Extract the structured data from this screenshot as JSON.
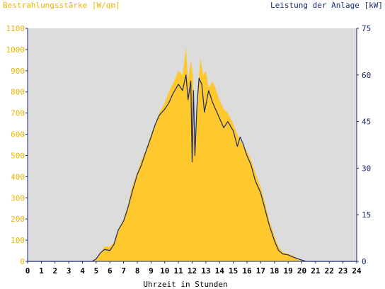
{
  "chart_data": {
    "type": "area",
    "left_axis_title": "Bestrahlungsstärke [W/qm]",
    "right_axis_title": "Leistung der Anlage [kW]",
    "xlabel": "Uhrzeit in Stunden",
    "xlim": [
      0,
      24
    ],
    "ylim_left": [
      0,
      1100
    ],
    "ylim_right": [
      0,
      75
    ],
    "x_ticks": [
      "0",
      "1",
      "2",
      "3",
      "4",
      "5",
      "6",
      "7",
      "8",
      "9",
      "10",
      "11",
      "12",
      "13",
      "14",
      "15",
      "16",
      "17",
      "18",
      "19",
      "20",
      "21",
      "22",
      "23",
      "24"
    ],
    "y_ticks_left": [
      "0",
      "100",
      "200",
      "300",
      "400",
      "500",
      "600",
      "700",
      "800",
      "900",
      "1000",
      "1100"
    ],
    "y_ticks_right": [
      "0",
      "15",
      "30",
      "45",
      "60",
      "75"
    ],
    "grid": false,
    "colors": {
      "plot_bg": "#dcdcdc",
      "irradiance_fill": "#ffc82c",
      "power_line": "#1a2a6c",
      "left_axis_text": "#f0b400",
      "right_axis_text": "#1a2a6c",
      "axis": "#1a2a6c"
    },
    "series": [
      {
        "axis": "left",
        "style": "area",
        "hour": [
          0,
          4.7,
          5.0,
          5.3,
          5.6,
          6.0,
          6.3,
          6.6,
          7.0,
          7.3,
          7.6,
          8.0,
          8.3,
          8.6,
          9.0,
          9.3,
          9.6,
          10.0,
          10.3,
          10.6,
          11.0,
          11.3,
          11.55,
          11.7,
          11.9,
          12.05,
          12.2,
          12.4,
          12.6,
          12.8,
          13.0,
          13.2,
          13.5,
          13.8,
          14.0,
          14.3,
          14.6,
          15.0,
          15.3,
          15.6,
          16.0,
          16.3,
          16.6,
          17.0,
          17.3,
          17.6,
          18.0,
          18.3,
          18.6,
          19.0,
          19.3,
          19.6,
          20.0,
          20.3,
          21,
          24
        ],
        "value": [
          0,
          0,
          10,
          40,
          70,
          70,
          90,
          150,
          200,
          260,
          350,
          420,
          480,
          520,
          600,
          650,
          700,
          750,
          800,
          840,
          900,
          880,
          1010,
          850,
          950,
          880,
          520,
          800,
          960,
          880,
          900,
          820,
          850,
          800,
          760,
          720,
          700,
          650,
          600,
          560,
          520,
          480,
          420,
          350,
          280,
          200,
          120,
          70,
          45,
          35,
          30,
          15,
          5,
          0,
          0,
          0
        ]
      },
      {
        "axis": "right",
        "style": "line",
        "hour": [
          0,
          4.7,
          5.0,
          5.3,
          5.6,
          6.0,
          6.3,
          6.6,
          7.0,
          7.3,
          7.6,
          8.0,
          8.3,
          8.6,
          9.0,
          9.3,
          9.6,
          10.0,
          10.3,
          10.6,
          11.0,
          11.3,
          11.55,
          11.7,
          11.9,
          12.0,
          12.1,
          12.2,
          12.35,
          12.5,
          12.7,
          12.9,
          13.2,
          13.5,
          13.8,
          14.0,
          14.3,
          14.6,
          15.0,
          15.3,
          15.5,
          15.7,
          16.0,
          16.3,
          16.6,
          17.0,
          17.3,
          17.6,
          18.0,
          18.3,
          18.6,
          19.0,
          19.3,
          19.6,
          20.0,
          20.3,
          21,
          24
        ],
        "value": [
          0,
          0,
          0.8,
          2.7,
          3.8,
          3.5,
          5.5,
          10,
          13,
          17,
          22,
          28,
          31,
          35,
          40,
          44,
          47,
          49,
          51,
          54,
          57,
          55,
          60,
          52,
          58,
          32,
          55,
          34,
          50,
          59,
          57,
          48,
          55,
          51,
          48,
          46,
          43,
          45,
          42,
          37,
          40,
          38,
          34,
          31,
          26,
          22,
          17,
          12,
          6.6,
          3.5,
          2.4,
          2.1,
          1.5,
          1,
          0.4,
          0,
          0,
          0
        ]
      }
    ]
  }
}
